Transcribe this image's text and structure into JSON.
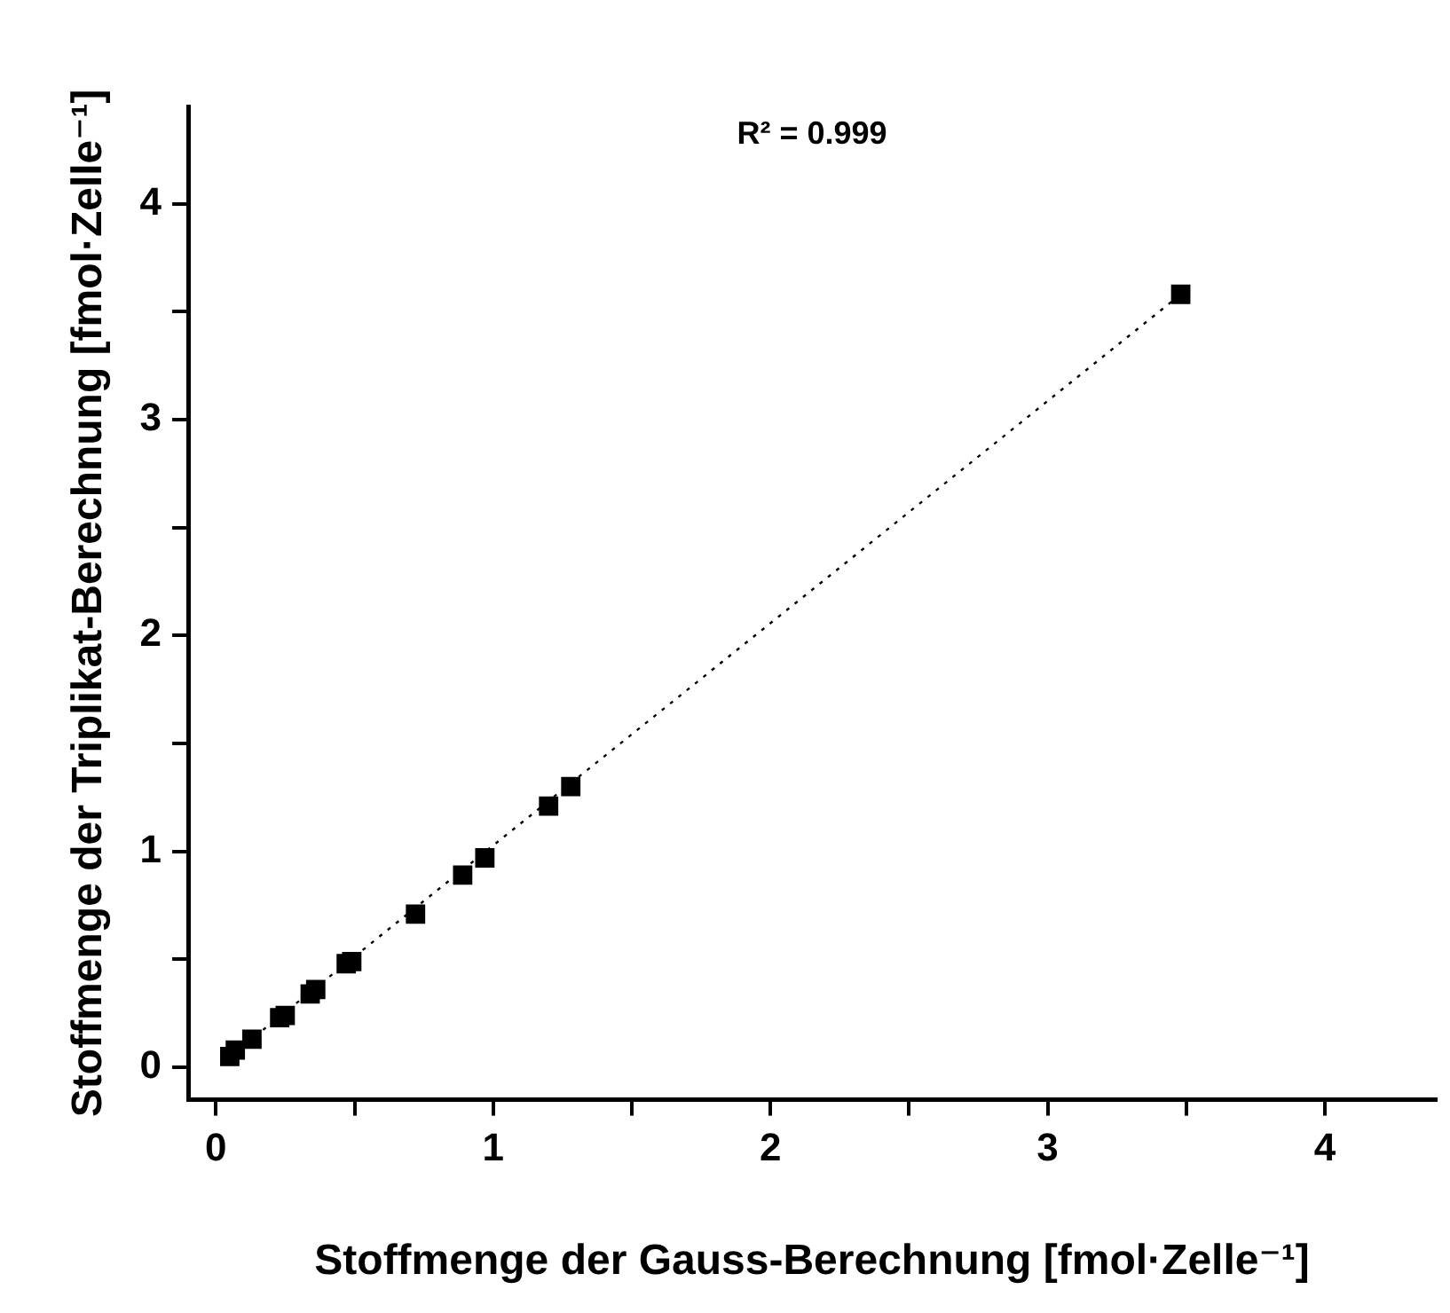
{
  "chart_data": {
    "type": "scatter",
    "xlabel": "Stoffmenge der Gauss-Berechnung [fmol·Zelle⁻¹]",
    "ylabel": "Stoffmenge der Triplikat-Berechnung [fmol·Zelle⁻¹]",
    "annotations": [
      "R² = 0.999"
    ],
    "series": [
      {
        "color": "#000000",
        "marker": "square",
        "x": [
          3.48,
          1.28,
          1.2,
          0.97,
          0.89,
          0.72,
          0.49,
          0.47,
          0.36,
          0.34,
          0.25,
          0.23,
          0.13,
          0.07,
          0.05
        ],
        "values": [
          3.58,
          1.3,
          1.21,
          0.97,
          0.89,
          0.71,
          0.49,
          0.48,
          0.36,
          0.34,
          0.24,
          0.23,
          0.13,
          0.08,
          0.05
        ]
      },
      {
        "type": "line",
        "color": "#000000",
        "line_style": "dotted",
        "marker": "none",
        "x": [
          0.05,
          3.48
        ],
        "values": [
          0.05,
          3.58
        ]
      }
    ],
    "xlim": [
      -0.1,
      4.4
    ],
    "ylim": [
      -0.15,
      4.45
    ],
    "xticks": [
      0,
      {
        "value": 0.5,
        "label": null
      },
      1,
      {
        "value": 1.5,
        "label": null
      },
      2,
      {
        "value": 2.5,
        "label": null
      },
      3,
      {
        "value": 3.5,
        "label": null
      },
      4
    ],
    "yticks": [
      0,
      {
        "value": 0.5,
        "label": null
      },
      1,
      {
        "value": 1.5,
        "label": null
      },
      2,
      {
        "value": 2.5,
        "label": null
      },
      3,
      {
        "value": 3.5,
        "label": null
      },
      4
    ],
    "grid": false,
    "legend": false
  }
}
